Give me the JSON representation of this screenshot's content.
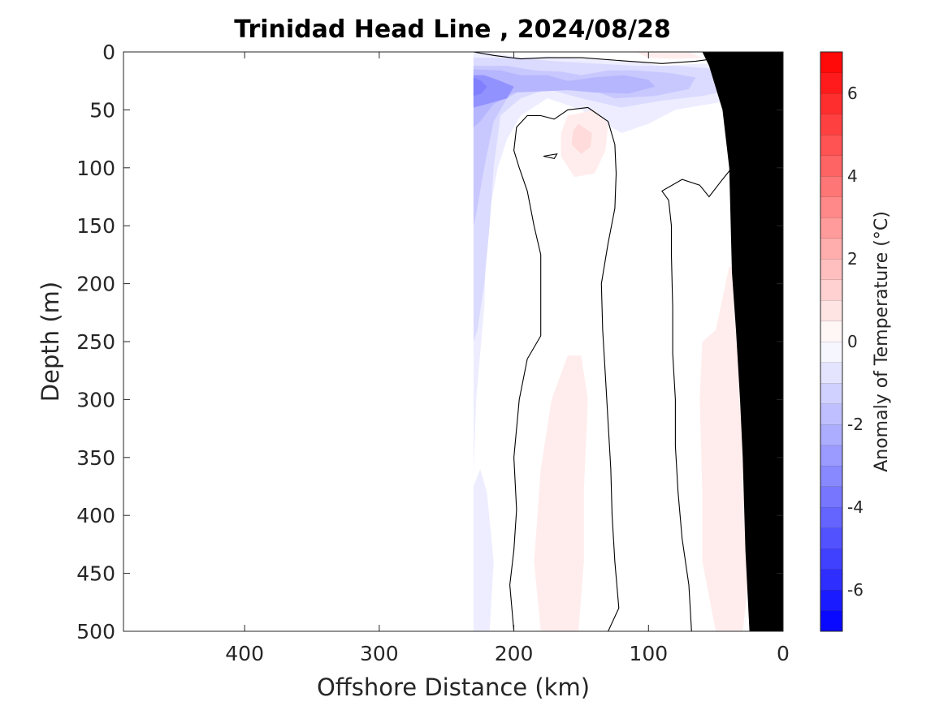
{
  "chart_data": {
    "type": "heatmap",
    "subtype": "filled-contour-section",
    "title": "Trinidad Head Line , 2024/08/28",
    "xlabel": "Offshore Distance (km)",
    "ylabel": "Depth (m)",
    "xlim": [
      490,
      0
    ],
    "ylim": [
      500,
      0
    ],
    "x_reversed": true,
    "y_reversed": true,
    "xticks": [
      400,
      300,
      200,
      100,
      0
    ],
    "xtick_labels": [
      "400",
      "300",
      "200",
      "100",
      "0"
    ],
    "yticks": [
      0,
      50,
      100,
      150,
      200,
      250,
      300,
      350,
      400,
      450,
      500
    ],
    "ytick_labels": [
      "0",
      "50",
      "100",
      "150",
      "200",
      "250",
      "300",
      "350",
      "400",
      "450",
      "500"
    ],
    "colorbar": {
      "label": "Anomaly of Temperature (°C)",
      "range": [
        -7,
        7
      ],
      "step": 0.5,
      "ticks": [
        -6,
        -4,
        -2,
        0,
        2,
        4,
        6
      ],
      "tick_labels": [
        "-6",
        "-4",
        "-2",
        "0",
        "2",
        "4",
        "6"
      ],
      "colormap": {
        "negative": "#0000ff",
        "zero": "#ffffff",
        "positive": "#ff0000"
      }
    },
    "data_extent_km": [
      0,
      230
    ],
    "bathymetry_color": "#000000",
    "anomaly_regions": [
      {
        "level": -0.5,
        "polygon": [
          [
            230,
            0
          ],
          [
            220,
            0
          ],
          [
            195,
            5
          ],
          [
            175,
            4
          ],
          [
            150,
            6
          ],
          [
            110,
            8
          ],
          [
            90,
            12
          ],
          [
            60,
            10
          ],
          [
            40,
            12
          ],
          [
            30,
            18
          ],
          [
            25,
            35
          ],
          [
            40,
            42
          ],
          [
            80,
            50
          ],
          [
            100,
            62
          ],
          [
            120,
            70
          ],
          [
            150,
            50
          ],
          [
            175,
            40
          ],
          [
            195,
            55
          ],
          [
            205,
            75
          ],
          [
            212,
            100
          ],
          [
            220,
            150
          ],
          [
            222,
            220
          ],
          [
            228,
            300
          ],
          [
            230,
            365
          ]
        ]
      },
      {
        "level": -0.5,
        "polygon": [
          [
            230,
            375
          ],
          [
            230,
            500
          ],
          [
            218,
            500
          ],
          [
            215,
            440
          ],
          [
            220,
            380
          ],
          [
            225,
            360
          ]
        ]
      },
      {
        "level": -1.0,
        "polygon": [
          [
            230,
            5
          ],
          [
            200,
            5
          ],
          [
            170,
            8
          ],
          [
            140,
            10
          ],
          [
            110,
            12
          ],
          [
            80,
            12
          ],
          [
            45,
            15
          ],
          [
            30,
            20
          ],
          [
            35,
            32
          ],
          [
            60,
            38
          ],
          [
            90,
            42
          ],
          [
            120,
            48
          ],
          [
            150,
            40
          ],
          [
            175,
            32
          ],
          [
            195,
            40
          ],
          [
            210,
            55
          ],
          [
            215,
            100
          ],
          [
            218,
            150
          ],
          [
            222,
            200
          ],
          [
            227,
            240
          ],
          [
            230,
            250
          ]
        ]
      },
      {
        "level": -1.5,
        "polygon": [
          [
            230,
            12
          ],
          [
            205,
            12
          ],
          [
            185,
            16
          ],
          [
            165,
            17
          ],
          [
            150,
            20
          ],
          [
            130,
            16
          ],
          [
            110,
            16
          ],
          [
            85,
            18
          ],
          [
            65,
            22
          ],
          [
            70,
            32
          ],
          [
            95,
            38
          ],
          [
            125,
            40
          ],
          [
            150,
            30
          ],
          [
            170,
            28
          ],
          [
            190,
            30
          ],
          [
            205,
            40
          ],
          [
            215,
            60
          ],
          [
            222,
            100
          ],
          [
            228,
            140
          ],
          [
            230,
            150
          ]
        ]
      },
      {
        "level": -2.0,
        "polygon": [
          [
            230,
            15
          ],
          [
            210,
            16
          ],
          [
            195,
            20
          ],
          [
            175,
            20
          ],
          [
            160,
            25
          ],
          [
            140,
            22
          ],
          [
            118,
            20
          ],
          [
            100,
            24
          ],
          [
            95,
            30
          ],
          [
            115,
            36
          ],
          [
            140,
            35
          ],
          [
            160,
            33
          ],
          [
            180,
            34
          ],
          [
            200,
            35
          ],
          [
            215,
            45
          ],
          [
            225,
            60
          ],
          [
            230,
            65
          ]
        ]
      },
      {
        "level": -3.0,
        "polygon": [
          [
            230,
            20
          ],
          [
            222,
            20
          ],
          [
            210,
            25
          ],
          [
            200,
            30
          ],
          [
            205,
            40
          ],
          [
            220,
            45
          ],
          [
            230,
            48
          ]
        ]
      },
      {
        "level": -3.5,
        "polygon": [
          [
            230,
            22
          ],
          [
            224,
            25
          ],
          [
            220,
            30
          ],
          [
            224,
            36
          ],
          [
            230,
            38
          ]
        ]
      },
      {
        "level": 0.5,
        "polygon": [
          [
            160,
            55
          ],
          [
            140,
            50
          ],
          [
            130,
            62
          ],
          [
            132,
            85
          ],
          [
            140,
            105
          ],
          [
            155,
            108
          ],
          [
            165,
            90
          ],
          [
            165,
            70
          ]
        ]
      },
      {
        "level": 1.0,
        "polygon": [
          [
            152,
            62
          ],
          [
            142,
            70
          ],
          [
            143,
            82
          ],
          [
            150,
            88
          ],
          [
            157,
            80
          ],
          [
            156,
            68
          ]
        ]
      },
      {
        "level": 0.5,
        "polygon": [
          [
            180,
            500
          ],
          [
            185,
            440
          ],
          [
            180,
            360
          ],
          [
            172,
            300
          ],
          [
            160,
            262
          ],
          [
            150,
            262
          ],
          [
            145,
            300
          ],
          [
            148,
            380
          ],
          [
            148,
            440
          ],
          [
            152,
            500
          ],
          [
            165,
            500
          ]
        ]
      },
      {
        "level": 0.5,
        "polygon": [
          [
            40,
            185
          ],
          [
            30,
            190
          ],
          [
            20,
            250
          ],
          [
            20,
            400
          ],
          [
            25,
            450
          ],
          [
            30,
            500
          ],
          [
            50,
            500
          ],
          [
            55,
            470
          ],
          [
            60,
            440
          ],
          [
            60,
            380
          ],
          [
            62,
            300
          ],
          [
            60,
            250
          ],
          [
            50,
            240
          ]
        ]
      },
      {
        "level": 0.5,
        "polygon": [
          [
            110,
            0
          ],
          [
            70,
            0
          ],
          [
            60,
            5
          ],
          [
            80,
            6
          ],
          [
            100,
            5
          ]
        ]
      },
      {
        "level": 0.5,
        "polygon": [
          [
            20,
            0
          ],
          [
            10,
            0
          ],
          [
            10,
            8
          ],
          [
            15,
            10
          ],
          [
            20,
            5
          ]
        ]
      }
    ],
    "zero_contours": [
      [
        [
          230,
          0
        ],
        [
          215,
          3
        ],
        [
          195,
          6
        ],
        [
          175,
          5
        ],
        [
          150,
          5
        ],
        [
          115,
          8
        ],
        [
          90,
          10
        ],
        [
          65,
          8
        ],
        [
          45,
          5
        ],
        [
          30,
          6
        ],
        [
          18,
          15
        ],
        [
          12,
          25
        ]
      ],
      [
        [
          200,
          500
        ],
        [
          203,
          460
        ],
        [
          200,
          430
        ],
        [
          198,
          395
        ],
        [
          200,
          350
        ],
        [
          196,
          300
        ],
        [
          190,
          265
        ],
        [
          180,
          245
        ],
        [
          180,
          175
        ],
        [
          185,
          150
        ],
        [
          190,
          120
        ],
        [
          196,
          100
        ],
        [
          200,
          85
        ],
        [
          198,
          65
        ],
        [
          190,
          55
        ],
        [
          180,
          55
        ],
        [
          170,
          58
        ],
        [
          160,
          50
        ],
        [
          145,
          48
        ],
        [
          130,
          60
        ],
        [
          125,
          80
        ],
        [
          124,
          105
        ],
        [
          125,
          135
        ],
        [
          130,
          165
        ],
        [
          135,
          200
        ],
        [
          134,
          240
        ],
        [
          132,
          280
        ],
        [
          130,
          320
        ],
        [
          128,
          360
        ],
        [
          127,
          400
        ],
        [
          125,
          440
        ],
        [
          122,
          480
        ],
        [
          130,
          500
        ]
      ],
      [
        [
          68,
          500
        ],
        [
          70,
          460
        ],
        [
          75,
          420
        ],
        [
          78,
          380
        ],
        [
          80,
          340
        ],
        [
          80,
          300
        ],
        [
          82,
          260
        ],
        [
          82,
          220
        ],
        [
          83,
          175
        ],
        [
          83,
          150
        ],
        [
          85,
          128
        ],
        [
          90,
          120
        ],
        [
          75,
          110
        ],
        [
          62,
          115
        ],
        [
          55,
          125
        ],
        [
          45,
          110
        ],
        [
          38,
          100
        ],
        [
          33,
          95
        ],
        [
          25,
          65
        ],
        [
          12,
          60
        ],
        [
          6,
          45
        ]
      ],
      [
        [
          178,
          90
        ],
        [
          170,
          92
        ],
        [
          168,
          88
        ],
        [
          178,
          90
        ]
      ]
    ],
    "bathymetry": [
      [
        0,
        0
      ],
      [
        0,
        500
      ],
      [
        25,
        500
      ],
      [
        28,
        430
      ],
      [
        30,
        350
      ],
      [
        32,
        300
      ],
      [
        35,
        240
      ],
      [
        38,
        190
      ],
      [
        40,
        100
      ],
      [
        45,
        50
      ],
      [
        55,
        12
      ],
      [
        60,
        0
      ]
    ]
  }
}
